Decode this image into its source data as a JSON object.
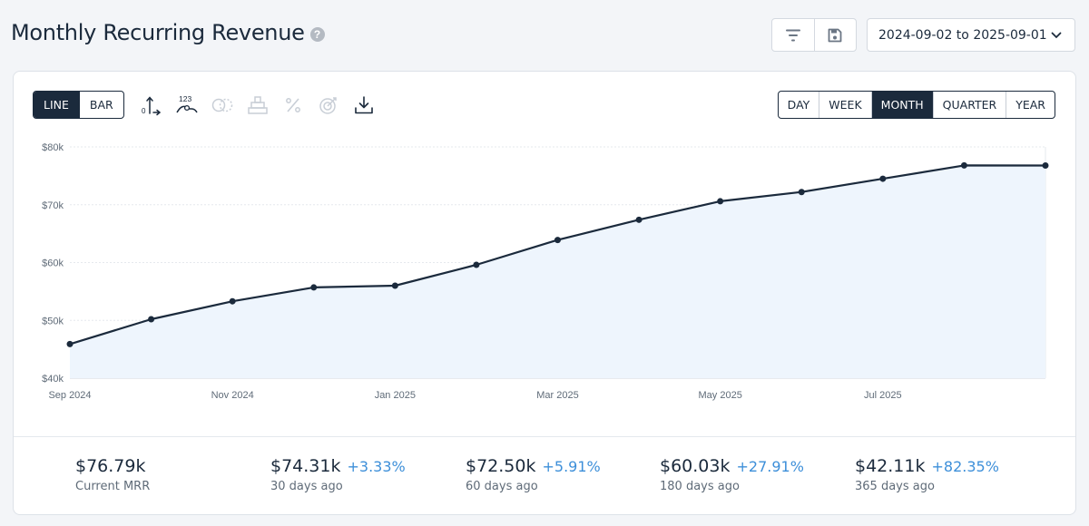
{
  "header": {
    "title": "Monthly Recurring Revenue",
    "help_icon": "question-circle-icon",
    "date_range": "2024-09-02 to 2025-09-01"
  },
  "header_icons": [
    "filter-icon",
    "save-icon",
    "chevron-down-icon"
  ],
  "chart_type_toggle": {
    "options": [
      "LINE",
      "BAR"
    ],
    "selected": "LINE"
  },
  "toolbar_icons": [
    {
      "name": "axis-scale-icon",
      "enabled": true
    },
    {
      "name": "data-labels-icon",
      "enabled": true,
      "label": "123"
    },
    {
      "name": "compare-icon",
      "enabled": false
    },
    {
      "name": "stack-icon",
      "enabled": false
    },
    {
      "name": "percent-icon",
      "enabled": false
    },
    {
      "name": "goal-target-icon",
      "enabled": false
    },
    {
      "name": "download-icon",
      "enabled": true
    }
  ],
  "period_toggle": {
    "options": [
      "DAY",
      "WEEK",
      "MONTH",
      "QUARTER",
      "YEAR"
    ],
    "selected": "MONTH"
  },
  "colors": {
    "line": "#1b2a3c",
    "area_fill": "#eef5fd",
    "accent_positive": "#3d8fd9",
    "active_toggle": "#1b2a3c"
  },
  "chart_data": {
    "type": "area",
    "x": [
      "2024-09",
      "2024-10",
      "2024-11",
      "2024-12",
      "2025-01",
      "2025-02",
      "2025-03",
      "2025-04",
      "2025-05",
      "2025-06",
      "2025-07",
      "2025-08",
      "2025-09-01"
    ],
    "values": [
      45.9,
      50.2,
      53.3,
      55.7,
      56.0,
      59.6,
      63.9,
      67.4,
      70.6,
      72.2,
      74.5,
      76.8,
      76.79
    ],
    "unit": "$k",
    "ylim": [
      40,
      80
    ],
    "y_ticks": [
      "$40k",
      "$50k",
      "$60k",
      "$70k",
      "$80k"
    ],
    "x_tick_labels": [
      "Sep 2024",
      "Nov 2024",
      "Jan 2025",
      "Mar 2025",
      "May 2025",
      "Jul 2025"
    ],
    "grid": true,
    "legend": "none"
  },
  "stats": [
    {
      "value": "$76.79k",
      "change": "",
      "label": "Current MRR"
    },
    {
      "value": "$74.31k",
      "change": "+3.33%",
      "label": "30 days ago"
    },
    {
      "value": "$72.50k",
      "change": "+5.91%",
      "label": "60 days ago"
    },
    {
      "value": "$60.03k",
      "change": "+27.91%",
      "label": "180 days ago"
    },
    {
      "value": "$42.11k",
      "change": "+82.35%",
      "label": "365 days ago"
    }
  ]
}
